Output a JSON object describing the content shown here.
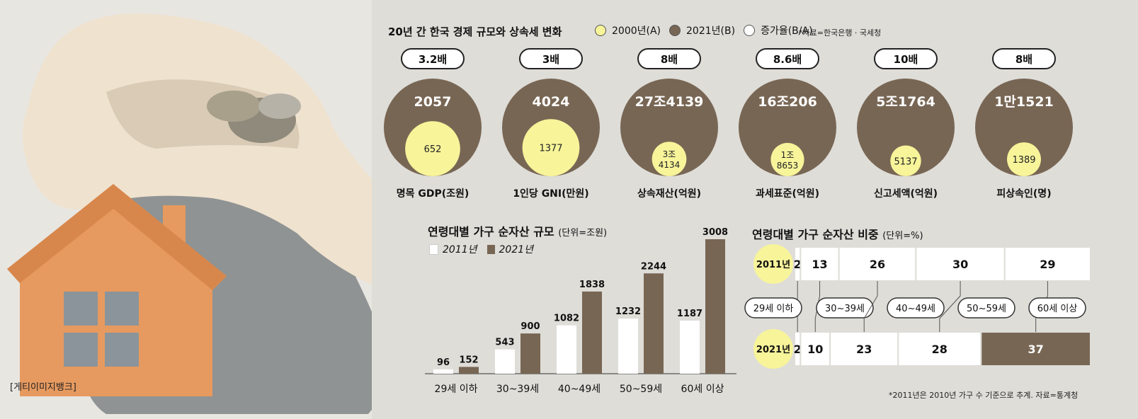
{
  "colors": {
    "background": "#deddd8",
    "yellow": "#f7f49a",
    "brown": "#786654",
    "white": "#ffffff",
    "dark_text": "#111111"
  },
  "photo_credit": "[게티이미지뱅크]",
  "top_section": {
    "title": "20년 간 한국 경제 규모와 상속세 변화",
    "legend": [
      {
        "label": "2000년(A)",
        "color": "#f7f49a"
      },
      {
        "label": "2021년(B)",
        "color": "#786654"
      },
      {
        "label": "증가율(B/A)",
        "color": "#ffffff"
      }
    ],
    "source": "*자료=한국은행 · 국세청",
    "items": [
      {
        "ratio": "3.2배",
        "value_2021": "2057",
        "value_2000_lines": [
          "652"
        ],
        "label": "명목 GDP(조원)",
        "v2000": 652,
        "v2021": 2057,
        "unit": "조원"
      },
      {
        "ratio": "3배",
        "value_2021": "4024",
        "value_2000_lines": [
          "1377"
        ],
        "label": "1인당 GNI(만원)",
        "v2000": 1377,
        "v2021": 4024,
        "unit": "만원"
      },
      {
        "ratio": "8배",
        "value_2021": "27조4139",
        "value_2000_lines": [
          "3조",
          "4134"
        ],
        "label": "상속재산(억원)",
        "v2000": 34134,
        "v2021": 274139,
        "unit": "억원"
      },
      {
        "ratio": "8.6배",
        "value_2021": "16조206",
        "value_2000_lines": [
          "1조",
          "8653"
        ],
        "label": "과세표준(억원)",
        "v2000": 18653,
        "v2021": 160206,
        "unit": "억원"
      },
      {
        "ratio": "10배",
        "value_2021": "5조1764",
        "value_2000_lines": [
          "5137"
        ],
        "label": "신고세액(억원)",
        "v2000": 5137,
        "v2021": 51764,
        "unit": "억원"
      },
      {
        "ratio": "8배",
        "value_2021": "1만1521",
        "value_2000_lines": [
          "1389"
        ],
        "label": "피상속인(명)",
        "v2000": 1389,
        "v2021": 11521,
        "unit": "명"
      }
    ]
  },
  "chart_data": [
    {
      "type": "bar",
      "title": "연령대별 가구 순자산 규모",
      "subtitle": "(단위=조원)",
      "categories": [
        "29세 이하",
        "30~39세",
        "40~49세",
        "50~59세",
        "60세 이상"
      ],
      "series": [
        {
          "name": "2011년",
          "values": [
            96,
            543,
            1082,
            1232,
            1187
          ],
          "color": "#ffffff"
        },
        {
          "name": "2021년",
          "values": [
            152,
            900,
            1838,
            2244,
            3008
          ],
          "color": "#786654"
        }
      ],
      "ylim": [
        0,
        3008
      ],
      "legend": "top-left",
      "grid": false
    },
    {
      "type": "bar",
      "orientation": "horizontal-stacked",
      "title": "연령대별 가구 순자산 비중",
      "subtitle": "(단위=%)",
      "categories": [
        "29세 이하",
        "30~39세",
        "40~49세",
        "50~59세",
        "60세 이상"
      ],
      "rows": [
        {
          "name": "2011년",
          "values": [
            2,
            13,
            26,
            30,
            29
          ],
          "highlight_index": -1
        },
        {
          "name": "2021년",
          "values": [
            2,
            10,
            23,
            28,
            37
          ],
          "highlight_index": 4
        }
      ],
      "footnote": "*2011년은 2010년 가구 수 기준으로 추계. 자료=통계청"
    }
  ]
}
